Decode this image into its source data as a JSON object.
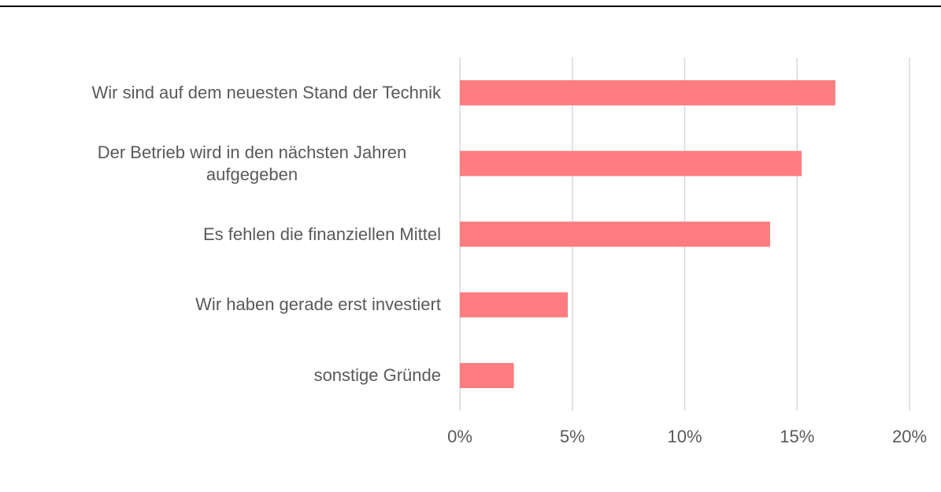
{
  "chart_data": {
    "type": "bar",
    "orientation": "horizontal",
    "categories": [
      "Wir sind auf dem neuesten Stand der Technik",
      "Der Betrieb wird in den nächsten Jahren aufgegeben",
      "Es fehlen die finanziellen Mittel",
      "Wir haben gerade erst investiert",
      "sonstige Gründe"
    ],
    "values": [
      16.7,
      15.2,
      13.8,
      4.8,
      2.4
    ],
    "color": "#ff7c80",
    "xlim": [
      0,
      20
    ],
    "xticks": [
      {
        "value": 0,
        "label": "0%"
      },
      {
        "value": 5,
        "label": "5%"
      },
      {
        "value": 10,
        "label": "10%"
      },
      {
        "value": 15,
        "label": "15%"
      },
      {
        "value": 20,
        "label": "20%"
      }
    ],
    "grid": true
  }
}
